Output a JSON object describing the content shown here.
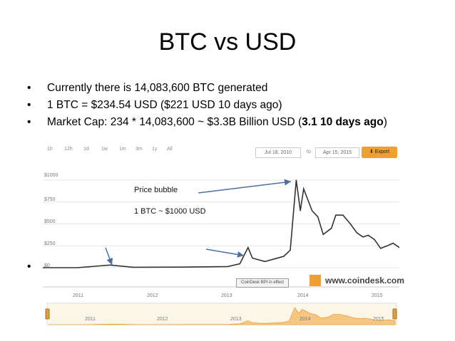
{
  "slide": {
    "title": "BTC vs USD",
    "bullets": [
      {
        "text": "Currently there is 14,083,600 BTC generated"
      },
      {
        "text": "1 BTC = $234.54 USD ($221 USD 10 days ago)"
      },
      {
        "pre": "Market Cap: 234 * 14,083,600 ~ $3.3B Billion USD (",
        "bold": "3.1 10 days ago",
        "post": ")"
      }
    ],
    "bullet_glyph": "•"
  },
  "chart": {
    "zoom_buttons": [
      "1h",
      "12h",
      "1d",
      "1w",
      "1m",
      "3m",
      "1y",
      "All"
    ],
    "start_date": "Jul 18, 2010",
    "to_label": "to",
    "end_date": "Apr 15, 2015",
    "export_label": "Export",
    "y_ticks": [
      "$1000",
      "$750",
      "$500",
      "$250",
      "$0"
    ],
    "x_years": [
      "2011",
      "2012",
      "2013",
      "2014",
      "2015"
    ],
    "navigator_years": [
      "2011",
      "2012",
      "2013",
      "2014",
      "2015"
    ],
    "annotation_1": "Price bubble",
    "annotation_2": "1 BTC ~ $1000 USD",
    "bpi_label": "CoinDesk BPI in effect",
    "logo_text": "www.coindesk.com",
    "line_color": "#333333",
    "navigator_color": "#f0a030",
    "arrow_color": "#4a6fa5"
  },
  "chart_data": {
    "type": "line",
    "title": "",
    "xlabel": "",
    "ylabel": "",
    "ylim": [
      0,
      1000
    ],
    "xlim": [
      "2010-07-18",
      "2015-04-15"
    ],
    "series": [
      {
        "x": [
          "2010-07-18",
          "2011-01-01",
          "2011-06-10",
          "2011-10-01",
          "2012-01-01",
          "2012-07-01",
          "2013-01-01",
          "2013-03-01",
          "2013-04-10",
          "2013-05-01",
          "2013-07-01",
          "2013-10-01",
          "2013-11-01",
          "2013-11-30",
          "2013-12-20",
          "2014-01-05",
          "2014-02-15",
          "2014-03-15",
          "2014-04-10",
          "2014-05-20",
          "2014-06-10",
          "2014-07-15",
          "2014-08-20",
          "2014-09-20",
          "2014-10-20",
          "2014-11-15",
          "2014-12-15",
          "2015-01-14",
          "2015-02-15",
          "2015-03-15",
          "2015-04-15"
        ],
        "y": [
          0.1,
          0.3,
          30,
          5,
          6,
          7,
          13,
          45,
          230,
          110,
          70,
          130,
          200,
          1000,
          650,
          900,
          650,
          580,
          380,
          450,
          600,
          600,
          500,
          400,
          350,
          370,
          320,
          220,
          250,
          280,
          230
        ]
      }
    ]
  }
}
